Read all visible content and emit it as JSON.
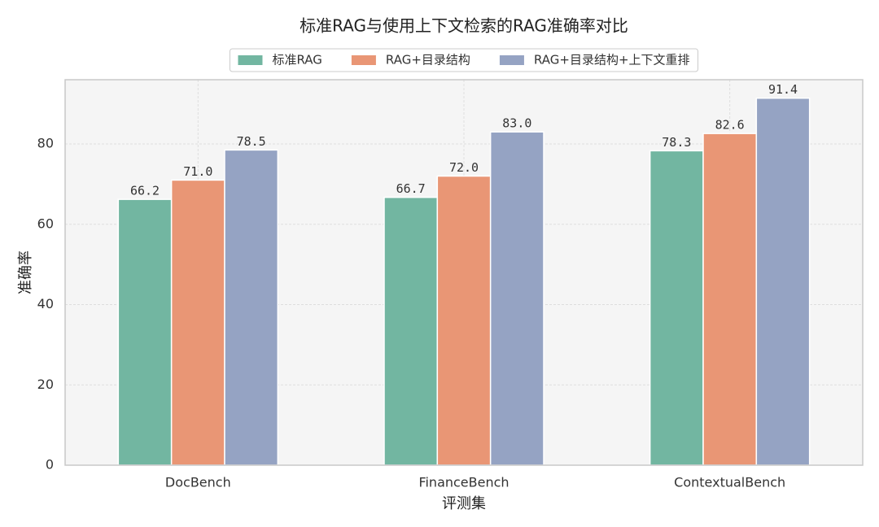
{
  "chart_data": {
    "type": "bar",
    "title": "标准RAG与使用上下文检索的RAG准确率对比",
    "x_label": "评测集",
    "y_label": "准确率",
    "categories": [
      "DocBench",
      "FinanceBench",
      "ContextualBench"
    ],
    "series": [
      {
        "name": "标准RAG",
        "color": "#72b6a1",
        "values": [
          66.2,
          66.7,
          78.3
        ],
        "value_labels": [
          "66.2",
          "66.7",
          "78.3"
        ]
      },
      {
        "name": "RAG+目录结构",
        "color": "#e99675",
        "values": [
          71.0,
          72.0,
          82.6
        ],
        "value_labels": [
          "71.0",
          "72.0",
          "82.6"
        ]
      },
      {
        "name": "RAG+目录结构+上下文重排",
        "color": "#95a3c3",
        "values": [
          78.5,
          83.0,
          91.4
        ],
        "value_labels": [
          "78.5",
          "83.0",
          "91.4"
        ]
      }
    ],
    "ylim": [
      0,
      96
    ],
    "yticks": [
      0,
      20,
      40,
      60,
      80
    ],
    "grid": true,
    "legend": "upper center"
  }
}
